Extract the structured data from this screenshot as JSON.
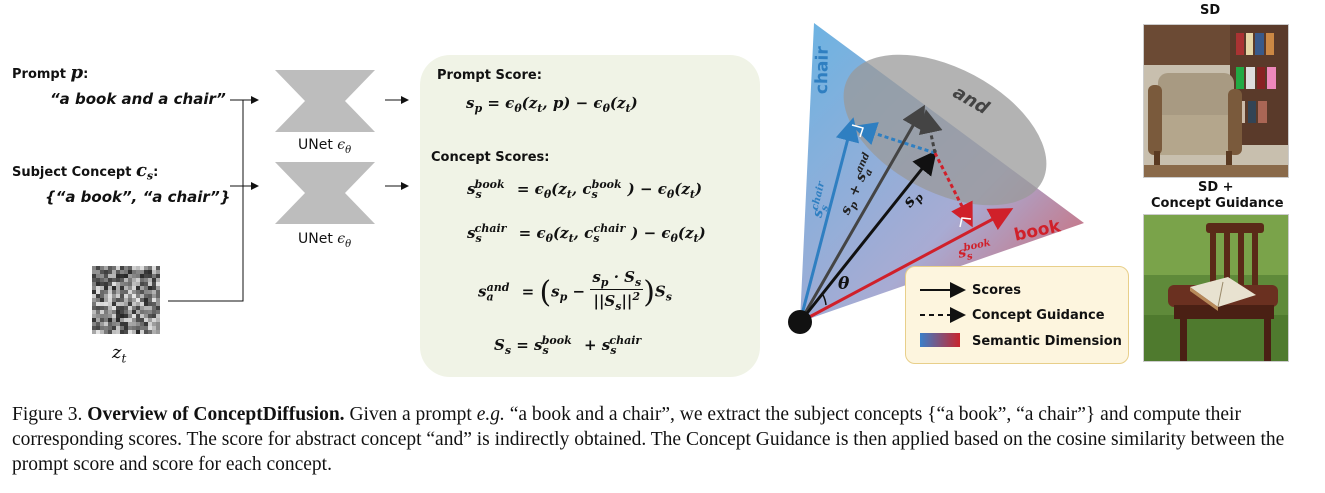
{
  "left": {
    "prompt_label": "Prompt ",
    "prompt_var": "p",
    "prompt_colon": ":",
    "prompt_text": "“a book and a chair”",
    "concept_label": "Subject Concept ",
    "concept_var": "c",
    "concept_sub": "s",
    "concept_colon": ":",
    "concept_text": "{“a book”, “a chair”}",
    "unet_label_1": "UNet ",
    "unet_label_2": "UNet ",
    "unet_eps": "ϵ",
    "unet_theta": "θ",
    "noise_label": "z",
    "noise_sub": "t"
  },
  "scores": {
    "prompt_score_title": "Prompt Score:",
    "concept_scores_title": "Concept Scores:"
  },
  "diagram": {
    "chair_label": "chair",
    "book_label": "book",
    "and_label": "and",
    "theta_label": "θ",
    "sp_label": "s",
    "sp_sub": "p",
    "colors": {
      "chair_region": "#3a9ad9",
      "book_region": "#c9252c",
      "and_region": "#999999",
      "chair_arrow": "#2f7fc1",
      "book_arrow": "#d0202a"
    }
  },
  "legend": {
    "scores": "Scores",
    "concept_guidance": "Concept Guidance",
    "semantic_dimension": "Semantic Dimension"
  },
  "photos": {
    "top_label": "SD",
    "bottom_label_1": "SD +",
    "bottom_label_2": "Concept Guidance"
  },
  "caption": {
    "figure": "Figure 3. ",
    "title": "Overview of ConceptDiffusion.",
    "text_a": " Given a prompt ",
    "eg": "e.g.",
    "text_b": " “a book and a chair”, we extract the subject concepts {“a book”, “a chair”} and compute their corresponding scores. The score for abstract concept “and” is indirectly obtained. The Concept Guidance is then applied based on the cosine similarity between the prompt score and score for each concept."
  }
}
